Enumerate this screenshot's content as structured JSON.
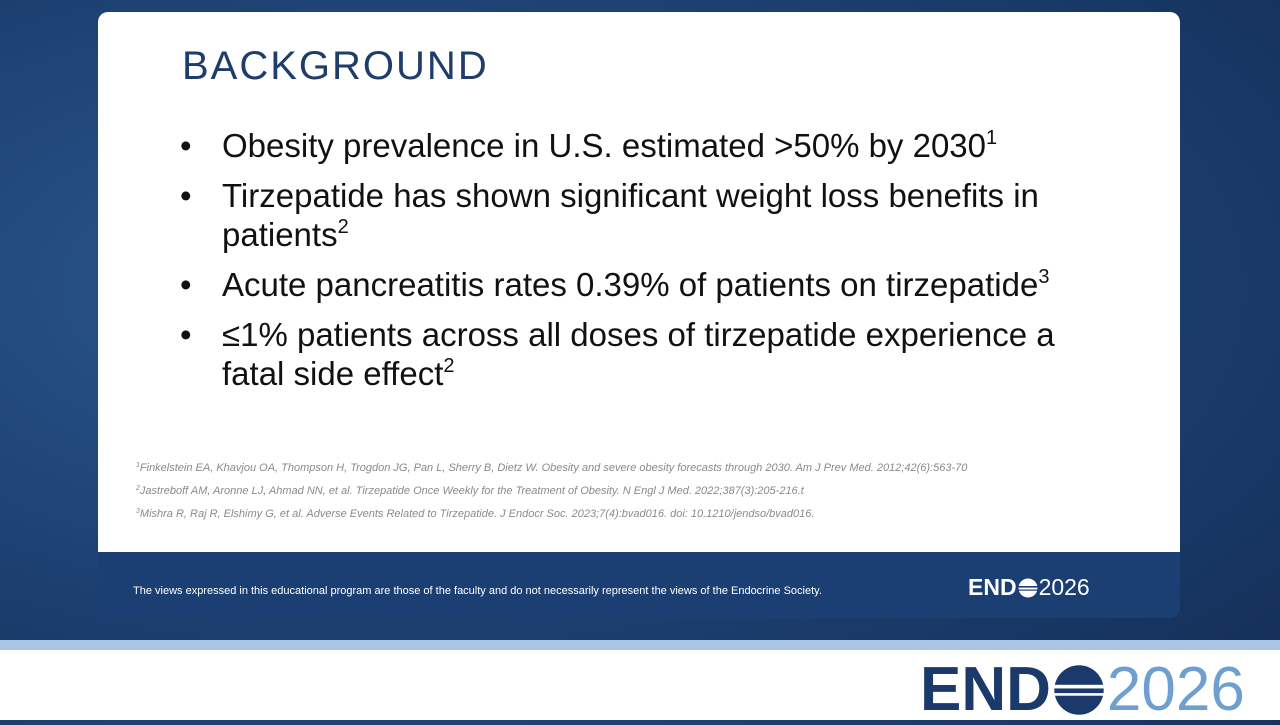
{
  "slide": {
    "title": "BACKGROUND",
    "bullets": [
      {
        "text": "Obesity prevalence in U.S. estimated >50% by 2030",
        "sup": "1"
      },
      {
        "text": "Tirzepatide has shown significant weight loss benefits in patients",
        "sup": "2"
      },
      {
        "text": "Acute pancreatitis rates 0.39% of patients on tirzepatide",
        "sup": "3"
      },
      {
        "text": "≤1% patients across all doses of tirzepatide experience a fatal side effect",
        "sup": "2"
      }
    ],
    "references": [
      {
        "sup": "1",
        "text": "Finkelstein EA, Khavjou OA, Thompson H, Trogdon JG, Pan L, Sherry B, Dietz W. Obesity and severe obesity forecasts through 2030. Am J Prev Med. 2012;42(6):563-70"
      },
      {
        "sup": "2",
        "text": "Jastreboff AM, Aronne LJ, Ahmad NN, et al. Tirzepatide Once Weekly for the Treatment of Obesity. N Engl J Med. 2022;387(3):205-216.t"
      },
      {
        "sup": "3",
        "text": "Mishra R, Raj R, Elshimy G, et al. Adverse Events Related to Tirzepatide. J Endocr Soc. 2023;7(4):bvad016. doi: 10.1210/jendso/bvad016."
      }
    ],
    "disclaimer": "The views expressed in this educational program are those of the faculty and do not necessarily represent the views of the Endocrine Society."
  },
  "logo": {
    "word": "END",
    "year": "2026"
  }
}
